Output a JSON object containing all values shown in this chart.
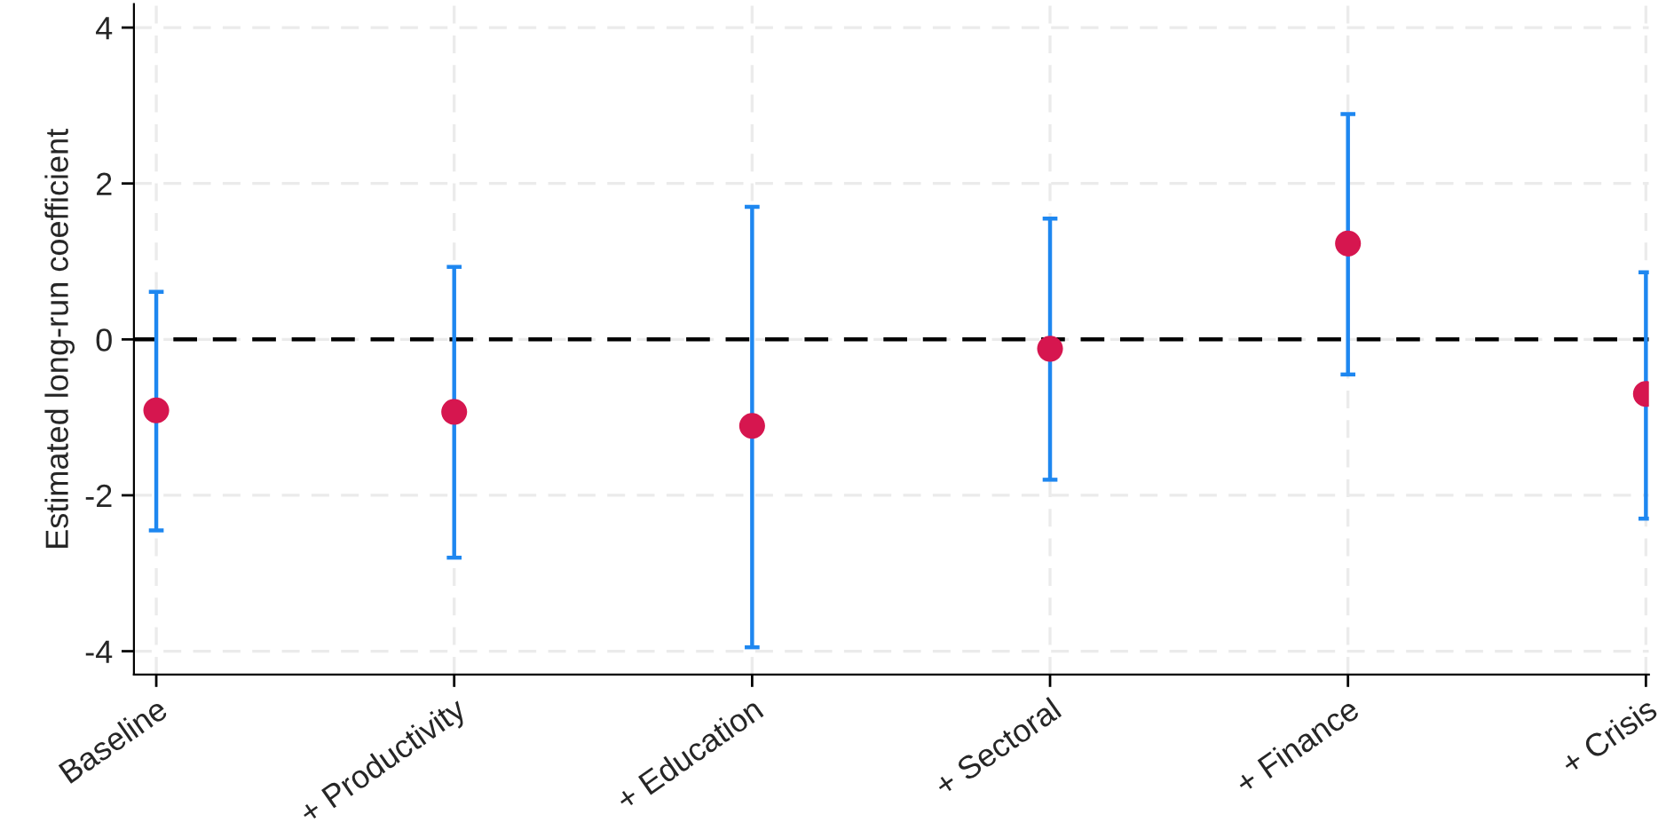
{
  "chart_data": {
    "type": "scatter",
    "ylabel": "Estimated long-run coefficient",
    "categories": [
      "Baseline",
      "+ Productivity",
      "+ Education",
      "+ Sectoral",
      "+ Finance",
      "+ Crisis"
    ],
    "series": [
      {
        "color": "#d6164f",
        "values": [
          -0.91,
          -0.93,
          -1.11,
          -0.12,
          1.23,
          -0.7
        ],
        "errors": [
          [
            -2.45,
            0.61
          ],
          [
            -2.8,
            0.93
          ],
          [
            -3.95,
            1.7
          ],
          [
            -1.8,
            1.55
          ],
          [
            -0.45,
            2.89
          ],
          [
            -2.3,
            0.86
          ]
        ]
      }
    ],
    "ylim": [
      -4.3,
      4.3
    ],
    "yticks": [
      -4,
      -2,
      0,
      2,
      4
    ],
    "ref_lines": [
      {
        "axis": "y",
        "value": 0,
        "color": "#000000",
        "line_style": "dashed"
      }
    ],
    "grid": true,
    "marker": "circle",
    "legend": false
  }
}
